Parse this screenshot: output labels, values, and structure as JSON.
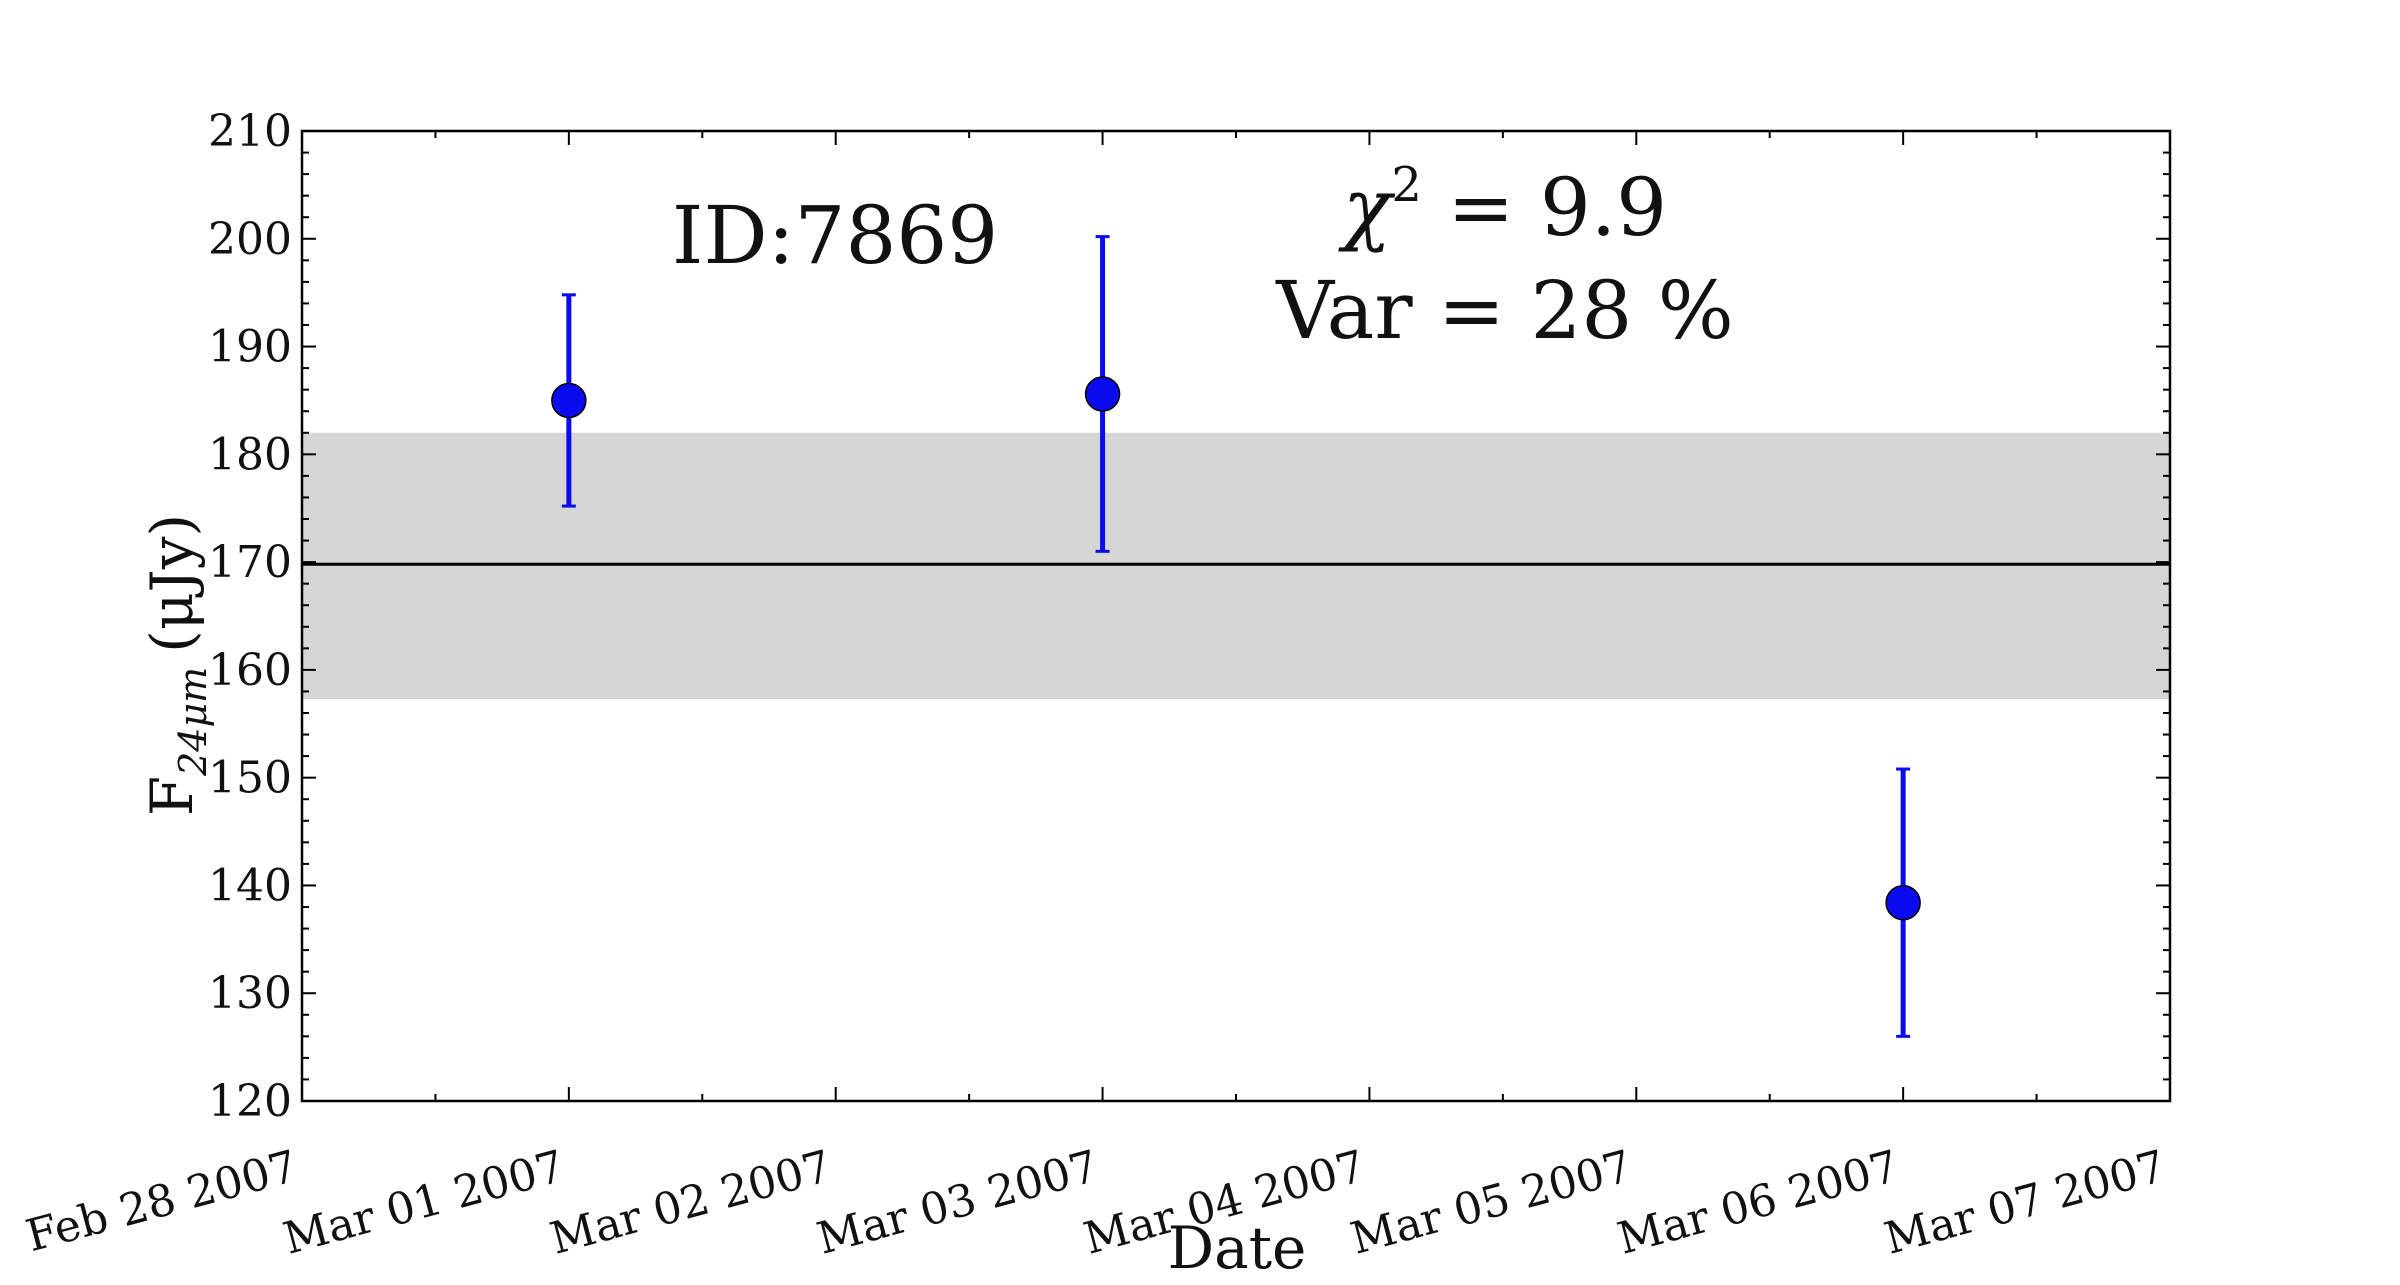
{
  "chart_data": {
    "type": "scatter",
    "x_tick_labels": [
      "Feb 28 2007",
      "Mar 01 2007",
      "Mar 02 2007",
      "Mar 03 2007",
      "Mar 04 2007",
      "Mar 05 2007",
      "Mar 06 2007",
      "Mar 07 2007"
    ],
    "xlim": [
      "2007-02-28",
      "2007-03-07"
    ],
    "ylim": [
      120,
      210
    ],
    "y_ticks": [
      120,
      130,
      140,
      150,
      160,
      170,
      180,
      190,
      200,
      210
    ],
    "xlabel": "Date",
    "ylabel": {
      "main": "F",
      "subscript": "24μm",
      "unit": "(μJy)"
    },
    "series": [
      {
        "color": "#0a0aee",
        "points": [
          {
            "x": "2007-03-01",
            "y": 185.0,
            "err": 9.8
          },
          {
            "x": "2007-03-03",
            "y": 185.6,
            "err": 14.6
          },
          {
            "x": "2007-03-06",
            "y": 138.4,
            "err": 12.4
          }
        ]
      }
    ],
    "mean_line": {
      "y": 169.8,
      "color": "#000000"
    },
    "band": {
      "y_low": 157.3,
      "y_high": 182.0,
      "color": "#d6d6d6"
    },
    "annotations": {
      "id_text": "ID:7869",
      "chi_symbol": "χ",
      "chi_exponent": "2",
      "chi_value": " = 9.9",
      "var_text": "Var = 28 %"
    },
    "grid": false
  }
}
